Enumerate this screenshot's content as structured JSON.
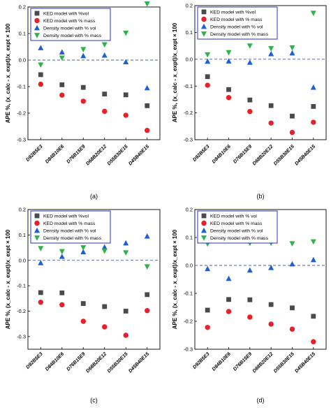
{
  "chart_data": [
    {
      "type": "scatter",
      "panel_label": "(a)",
      "ylabel": "APE %, (x_calc - x_expt)/x_expt × 100",
      "ylim": [
        -0.3,
        0.2
      ],
      "yticks": [
        "-0.3",
        "-0.2",
        "-0.1",
        "0.0",
        "0.1",
        "0.2"
      ],
      "categories": [
        "D92B5E3",
        "D84B10E6",
        "D76B15E9",
        "D68B20E12",
        "D55B30E15",
        "D45B40E15"
      ],
      "legend": [
        "KED model with %vol",
        "KED model with % mass",
        "Density model with % vol",
        "Density model with % mass"
      ],
      "series": [
        {
          "name": "KED model with %vol",
          "marker": "square",
          "color": "#4a4a4a",
          "values": [
            -0.055,
            -0.093,
            -0.103,
            -0.128,
            -0.131,
            -0.172
          ]
        },
        {
          "name": "KED model with % mass",
          "marker": "circle",
          "color": "#e8202a",
          "values": [
            -0.091,
            -0.132,
            -0.155,
            -0.193,
            -0.208,
            -0.265
          ]
        },
        {
          "name": "Density model with % vol",
          "marker": "triangle-up",
          "color": "#1f5fd6",
          "values": [
            0.046,
            0.03,
            0.016,
            0.018,
            -0.007,
            -0.105
          ]
        },
        {
          "name": "Density model with % mass",
          "marker": "triangle-down",
          "color": "#2db34a",
          "values": [
            -0.018,
            0.008,
            0.04,
            0.058,
            0.102,
            0.212
          ]
        }
      ]
    },
    {
      "type": "scatter",
      "panel_label": "(b)",
      "ylabel": "APE %, (x_calc - x_expt)/x_expt × 100",
      "ylim": [
        -0.3,
        0.2
      ],
      "yticks": [
        "-0.3",
        "-0.2",
        "-0.1",
        "0.0",
        "0.1",
        "0.2"
      ],
      "categories": [
        "D92B5E3",
        "D84B10E6",
        "D76B15E9",
        "D68B20E12",
        "D55B30E15",
        "D45B40E15"
      ],
      "legend": [
        "KED model with %vol",
        "KED model with % mass",
        "Density model with % vol",
        "Density model with % mass"
      ],
      "series": [
        {
          "name": "KED model with %vol",
          "marker": "square",
          "color": "#4a4a4a",
          "values": [
            -0.065,
            -0.113,
            -0.152,
            -0.173,
            -0.212,
            -0.176
          ]
        },
        {
          "name": "KED model with % mass",
          "marker": "circle",
          "color": "#e8202a",
          "values": [
            -0.097,
            -0.143,
            -0.195,
            -0.238,
            -0.273,
            -0.235
          ]
        },
        {
          "name": "Density model with % vol",
          "marker": "triangle-up",
          "color": "#1f5fd6",
          "values": [
            -0.008,
            -0.007,
            -0.012,
            0.02,
            0.023,
            -0.105
          ]
        },
        {
          "name": "Density model with % mass",
          "marker": "triangle-down",
          "color": "#2db34a",
          "values": [
            0.017,
            0.025,
            0.05,
            0.04,
            0.043,
            0.172
          ]
        }
      ]
    },
    {
      "type": "scatter",
      "panel_label": "(c)",
      "ylabel": "APE %, (x_calc - x_expt)/x_expt × 100",
      "ylim": [
        -0.35,
        0.2
      ],
      "yticks": [
        "-0.3",
        "-0.2",
        "-0.1",
        "0.0",
        "0.1",
        "0.2"
      ],
      "categories": [
        "D92B5E3",
        "D84B10E6",
        "D76B15E9",
        "D68B20E12",
        "D55B30E15",
        "D45B40E15"
      ],
      "legend": [
        "KED model with %vol",
        "KED model with % mass",
        "Density model with % vol",
        "Density model with % mass"
      ],
      "series": [
        {
          "name": "KED model with %vol",
          "marker": "square",
          "color": "#4a4a4a",
          "values": [
            -0.127,
            -0.128,
            -0.17,
            -0.182,
            -0.2,
            -0.135
          ]
        },
        {
          "name": "KED model with % mass",
          "marker": "circle",
          "color": "#e8202a",
          "values": [
            -0.165,
            -0.175,
            -0.24,
            -0.262,
            -0.295,
            -0.198
          ]
        },
        {
          "name": "Density model with % vol",
          "marker": "triangle-up",
          "color": "#1f5fd6",
          "values": [
            -0.01,
            0.015,
            0.033,
            0.052,
            0.068,
            0.095
          ]
        },
        {
          "name": "Density model with % mass",
          "marker": "triangle-down",
          "color": "#2db34a",
          "values": [
            0.047,
            0.035,
            0.05,
            0.037,
            0.03,
            -0.025
          ]
        }
      ]
    },
    {
      "type": "scatter",
      "panel_label": "(d)",
      "ylabel": "APE %, (x_calc - x_expt)/x_expt × 100",
      "ylim": [
        -0.3,
        0.2
      ],
      "yticks": [
        "-0.3",
        "-0.2",
        "-0.1",
        "0.0",
        "0.1",
        "0.2"
      ],
      "categories": [
        "D92B5E3",
        "D84B10E6",
        "D76B15E9",
        "D68B20E12",
        "D55B30E15",
        "D45B40E15"
      ],
      "legend": [
        "KED model with % vol",
        "KED model with % mass",
        "Density model with % vol",
        "Density model with % mass"
      ],
      "series": [
        {
          "name": "KED model with % vol",
          "marker": "square",
          "color": "#4a4a4a",
          "values": [
            -0.16,
            -0.122,
            -0.123,
            -0.14,
            -0.152,
            -0.182
          ]
        },
        {
          "name": "KED model with % mass",
          "marker": "circle",
          "color": "#e8202a",
          "values": [
            -0.222,
            -0.165,
            -0.185,
            -0.21,
            -0.228,
            -0.273
          ]
        },
        {
          "name": "Density model with % vol",
          "marker": "triangle-up",
          "color": "#1f5fd6",
          "values": [
            -0.012,
            -0.047,
            -0.017,
            -0.008,
            0.005,
            0.02
          ]
        },
        {
          "name": "Density model with % mass",
          "marker": "triangle-down",
          "color": "#2db34a",
          "values": [
            0.077,
            0.103,
            0.08,
            0.08,
            0.078,
            0.085
          ]
        }
      ]
    }
  ]
}
